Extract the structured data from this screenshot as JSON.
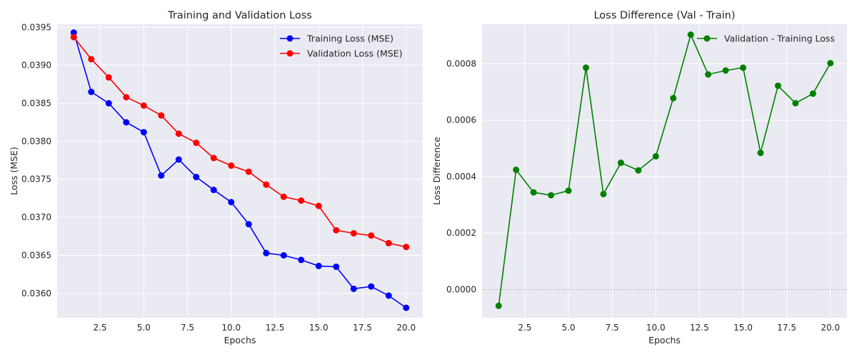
{
  "chart_data": [
    {
      "type": "line",
      "title": "Training and Validation Loss",
      "xlabel": "Epochs",
      "ylabel": "Loss (MSE)",
      "xlim": [
        0.05,
        20.95
      ],
      "ylim": [
        0.03568,
        0.03954
      ],
      "xticks": [
        2.5,
        5.0,
        7.5,
        10.0,
        12.5,
        15.0,
        17.5,
        20.0
      ],
      "xtick_labels": [
        "2.5",
        "5.0",
        "7.5",
        "10.0",
        "12.5",
        "15.0",
        "17.5",
        "20.0"
      ],
      "yticks": [
        0.036,
        0.0365,
        0.037,
        0.0375,
        0.038,
        0.0385,
        0.039,
        0.0395
      ],
      "ytick_labels": [
        "0.0360",
        "0.0365",
        "0.0370",
        "0.0375",
        "0.0380",
        "0.0385",
        "0.0390",
        "0.0395"
      ],
      "grid": true,
      "legend_position": "top-right",
      "x": [
        1,
        2,
        3,
        4,
        5,
        6,
        7,
        8,
        9,
        10,
        11,
        12,
        13,
        14,
        15,
        16,
        17,
        18,
        19,
        20
      ],
      "series": [
        {
          "name": "Training Loss (MSE)",
          "color": "#0000ff",
          "values": [
            0.03943,
            0.03865,
            0.0385,
            0.03825,
            0.03812,
            0.03755,
            0.03776,
            0.03753,
            0.03736,
            0.0372,
            0.03691,
            0.03653,
            0.0365,
            0.03644,
            0.03636,
            0.03635,
            0.03606,
            0.03609,
            0.03597,
            0.03581
          ]
        },
        {
          "name": "Validation Loss (MSE)",
          "color": "#ff0000",
          "values": [
            0.03937,
            0.03908,
            0.03884,
            0.03858,
            0.03847,
            0.03834,
            0.0381,
            0.03798,
            0.03778,
            0.03768,
            0.0376,
            0.03743,
            0.03727,
            0.03722,
            0.03715,
            0.03683,
            0.03679,
            0.03676,
            0.03666,
            0.03661
          ]
        }
      ]
    },
    {
      "type": "line",
      "title": "Loss Difference (Val - Train)",
      "xlabel": "Epochs",
      "ylabel": "Loss Difference",
      "xlim": [
        0.05,
        20.95
      ],
      "ylim": [
        -0.0001,
        0.00094
      ],
      "xticks": [
        2.5,
        5.0,
        7.5,
        10.0,
        12.5,
        15.0,
        17.5,
        20.0
      ],
      "xtick_labels": [
        "2.5",
        "5.0",
        "7.5",
        "10.0",
        "12.5",
        "15.0",
        "17.5",
        "20.0"
      ],
      "yticks": [
        0.0,
        0.0002,
        0.0004,
        0.0006,
        0.0008
      ],
      "ytick_labels": [
        "0.0000",
        "0.0002",
        "0.0004",
        "0.0006",
        "0.0008"
      ],
      "grid": true,
      "legend_position": "top-right",
      "zero_line": true,
      "x": [
        1,
        2,
        3,
        4,
        5,
        6,
        7,
        8,
        9,
        10,
        11,
        12,
        13,
        14,
        15,
        16,
        17,
        18,
        19,
        20
      ],
      "series": [
        {
          "name": "Validation - Training Loss",
          "color": "#008000",
          "values": [
            -5.8e-05,
            0.000424,
            0.000344,
            0.000334,
            0.00035,
            0.000786,
            0.000338,
            0.000449,
            0.000422,
            0.000472,
            0.000678,
            0.000903,
            0.000762,
            0.000776,
            0.000786,
            0.000484,
            0.000722,
            0.00066,
            0.000694,
            0.000802
          ]
        }
      ]
    }
  ]
}
